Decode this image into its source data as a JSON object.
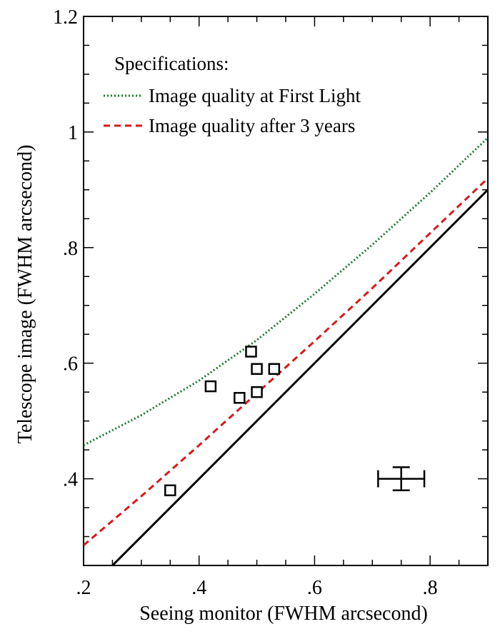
{
  "chart_data": {
    "type": "scatter",
    "title": "",
    "xlabel": "Seeing monitor (FWHM arcsecond)",
    "ylabel": "Telescope image (FWHM arcsecond)",
    "xlim": [
      0.2,
      0.9
    ],
    "ylim": [
      0.25,
      1.2
    ],
    "x_ticks": [
      {
        "value": 0.2,
        "label": ".2"
      },
      {
        "value": 0.4,
        "label": ".4"
      },
      {
        "value": 0.6,
        "label": ".6"
      },
      {
        "value": 0.8,
        "label": ".8"
      }
    ],
    "y_ticks": [
      {
        "value": 0.4,
        "label": ".4"
      },
      {
        "value": 0.6,
        "label": ".6"
      },
      {
        "value": 0.8,
        "label": ".8"
      },
      {
        "value": 1.0,
        "label": "1"
      },
      {
        "value": 1.2,
        "label": "1.2"
      }
    ],
    "grid": false,
    "legend": {
      "title": "Specifications:",
      "position": "top-left",
      "entries": [
        {
          "label": "Image quality at First Light",
          "color": "#1a7a2e",
          "style": "dotted"
        },
        {
          "label": "Image quality after 3 years",
          "color": "#d7191c",
          "style": "dashed"
        }
      ]
    },
    "series": [
      {
        "name": "Image quality at First Light",
        "type": "line",
        "style": "dotted",
        "color": "#1a7a2e",
        "x": [
          0.2,
          0.3,
          0.4,
          0.5,
          0.6,
          0.7,
          0.8,
          0.9
        ],
        "y": [
          0.458,
          0.51,
          0.57,
          0.64,
          0.72,
          0.805,
          0.895,
          0.99
        ]
      },
      {
        "name": "Image quality after 3 years",
        "type": "line",
        "style": "dashed",
        "color": "#d7191c",
        "x": [
          0.2,
          0.3,
          0.4,
          0.5,
          0.6,
          0.7,
          0.8,
          0.9
        ],
        "y": [
          0.285,
          0.37,
          0.458,
          0.548,
          0.638,
          0.73,
          0.825,
          0.92
        ]
      },
      {
        "type": "line",
        "style": "solid",
        "color": "#000000",
        "x": [
          0.2,
          0.9
        ],
        "y": [
          0.2,
          0.9
        ]
      },
      {
        "type": "scatter",
        "marker": "square",
        "color": "#000000",
        "points": [
          {
            "x": 0.35,
            "y": 0.38
          },
          {
            "x": 0.42,
            "y": 0.56
          },
          {
            "x": 0.47,
            "y": 0.54
          },
          {
            "x": 0.49,
            "y": 0.62
          },
          {
            "x": 0.5,
            "y": 0.59
          },
          {
            "x": 0.5,
            "y": 0.55
          },
          {
            "x": 0.53,
            "y": 0.59
          }
        ]
      }
    ],
    "error_bar": {
      "x": 0.75,
      "y": 0.4,
      "xerr": 0.04,
      "yerr": 0.02,
      "color": "#000000"
    }
  }
}
